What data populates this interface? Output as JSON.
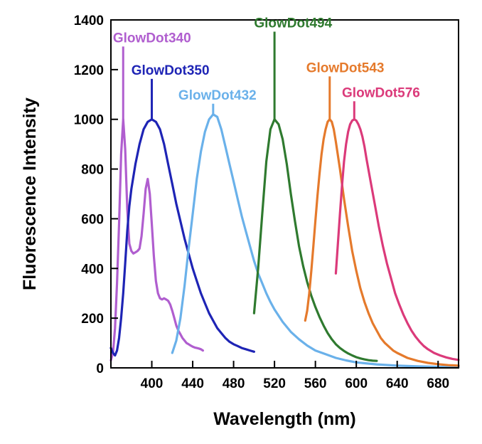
{
  "chart_data": {
    "type": "line",
    "title": "",
    "xlabel": "Wavelength (nm)",
    "ylabel": "Fluorescence Intensity",
    "xlim": [
      360,
      700
    ],
    "ylim": [
      0,
      1400
    ],
    "xticks": [
      400,
      440,
      480,
      520,
      560,
      600,
      640,
      680
    ],
    "yticks": [
      0,
      200,
      400,
      600,
      800,
      1000,
      1200,
      1400
    ],
    "grid": false,
    "legend": "labels with leader lines above each peak",
    "series": [
      {
        "name": "GlowDot340",
        "color": "#b05ecf",
        "label_at": [
          362,
          1310
        ],
        "x": [
          360,
          362,
          364,
          366,
          368,
          370,
          372,
          374,
          376,
          378,
          380,
          382,
          384,
          386,
          388,
          390,
          392,
          394,
          396,
          398,
          400,
          402,
          404,
          406,
          408,
          410,
          412,
          414,
          416,
          418,
          420,
          422,
          424,
          426,
          428,
          430,
          432,
          434,
          436,
          438,
          440,
          442,
          444,
          446,
          448,
          450
        ],
        "y": [
          30,
          60,
          160,
          340,
          580,
          860,
          1000,
          880,
          640,
          500,
          470,
          460,
          465,
          470,
          480,
          530,
          620,
          720,
          760,
          700,
          580,
          450,
          350,
          300,
          280,
          275,
          280,
          275,
          270,
          255,
          230,
          200,
          170,
          150,
          135,
          120,
          110,
          100,
          95,
          90,
          85,
          82,
          80,
          78,
          75,
          70
        ]
      },
      {
        "name": "GlowDot350",
        "color": "#1e24b5",
        "label_at": [
          380,
          1180
        ],
        "x": [
          360,
          362,
          364,
          366,
          368,
          370,
          372,
          374,
          376,
          378,
          380,
          384,
          388,
          392,
          396,
          400,
          404,
          408,
          412,
          416,
          420,
          424,
          428,
          432,
          436,
          440,
          444,
          448,
          452,
          456,
          460,
          464,
          468,
          472,
          476,
          480,
          484,
          488,
          492,
          496,
          500
        ],
        "y": [
          80,
          60,
          50,
          70,
          120,
          200,
          300,
          420,
          550,
          650,
          720,
          820,
          900,
          960,
          990,
          1000,
          990,
          960,
          900,
          820,
          740,
          660,
          590,
          520,
          460,
          400,
          350,
          300,
          260,
          220,
          190,
          160,
          140,
          120,
          105,
          95,
          88,
          80,
          75,
          70,
          65
        ]
      },
      {
        "name": "GlowDot432",
        "color": "#6ab1ea",
        "label_at": [
          426,
          1080
        ],
        "x": [
          420,
          424,
          428,
          432,
          436,
          440,
          444,
          448,
          452,
          456,
          460,
          464,
          468,
          472,
          476,
          480,
          484,
          488,
          492,
          496,
          500,
          504,
          508,
          512,
          516,
          520,
          528,
          536,
          544,
          552,
          560,
          570,
          580,
          590,
          600,
          620,
          640,
          660,
          680,
          700
        ],
        "y": [
          60,
          110,
          200,
          330,
          480,
          620,
          760,
          870,
          950,
          1000,
          1020,
          1010,
          960,
          890,
          820,
          750,
          680,
          610,
          550,
          490,
          430,
          380,
          340,
          300,
          265,
          235,
          185,
          145,
          115,
          90,
          70,
          55,
          40,
          30,
          22,
          14,
          9,
          6,
          4,
          3
        ]
      },
      {
        "name": "GlowDot494",
        "color": "#2f7a2f",
        "label_at": [
          500,
          1370
        ],
        "x": [
          500,
          504,
          508,
          512,
          516,
          520,
          524,
          528,
          532,
          536,
          540,
          544,
          548,
          552,
          556,
          560,
          564,
          568,
          572,
          576,
          580,
          584,
          588,
          592,
          596,
          600,
          604,
          608,
          612,
          616,
          620
        ],
        "y": [
          220,
          400,
          620,
          830,
          960,
          1000,
          980,
          920,
          820,
          700,
          590,
          490,
          410,
          345,
          290,
          245,
          205,
          170,
          140,
          115,
          95,
          80,
          68,
          58,
          50,
          43,
          38,
          34,
          31,
          29,
          28
        ]
      },
      {
        "name": "GlowDot543",
        "color": "#e57a2c",
        "label_at": [
          551,
          1190
        ],
        "x": [
          550,
          552,
          554,
          556,
          558,
          560,
          562,
          564,
          566,
          568,
          570,
          572,
          574,
          576,
          578,
          580,
          584,
          588,
          592,
          596,
          600,
          604,
          608,
          612,
          616,
          620,
          624,
          628,
          632,
          636,
          640,
          650,
          660,
          670,
          680,
          690,
          700
        ],
        "y": [
          190,
          230,
          300,
          390,
          490,
          590,
          690,
          780,
          860,
          920,
          960,
          990,
          1000,
          990,
          960,
          910,
          800,
          680,
          570,
          470,
          390,
          320,
          265,
          220,
          180,
          150,
          120,
          100,
          85,
          70,
          60,
          40,
          28,
          20,
          15,
          11,
          9
        ]
      },
      {
        "name": "GlowDot576",
        "color": "#db3a7a",
        "label_at": [
          586,
          1090
        ],
        "x": [
          580,
          582,
          584,
          586,
          588,
          590,
          592,
          594,
          596,
          598,
          600,
          602,
          604,
          606,
          608,
          610,
          614,
          618,
          622,
          626,
          630,
          634,
          638,
          642,
          646,
          650,
          654,
          658,
          662,
          666,
          670,
          676,
          682,
          688,
          694,
          700
        ],
        "y": [
          380,
          500,
          620,
          730,
          830,
          900,
          950,
          980,
          995,
          1000,
          995,
          980,
          960,
          930,
          890,
          840,
          750,
          660,
          570,
          490,
          420,
          360,
          300,
          255,
          215,
          180,
          150,
          125,
          105,
          88,
          75,
          60,
          50,
          42,
          36,
          32
        ]
      }
    ]
  }
}
